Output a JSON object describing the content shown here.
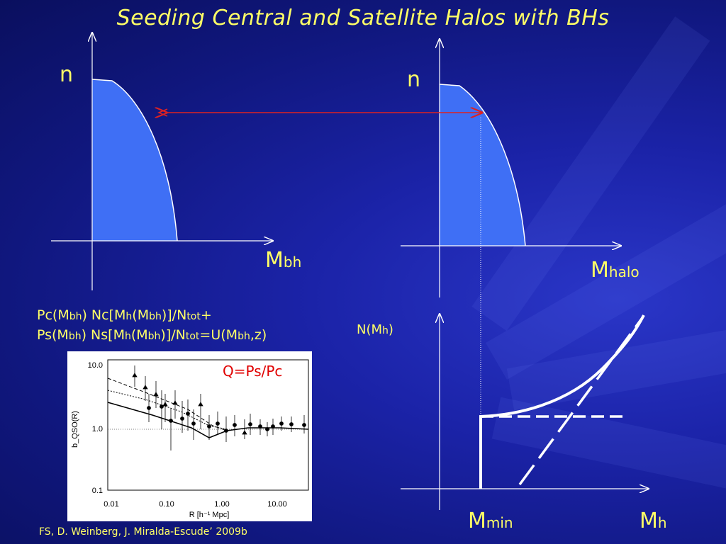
{
  "title": "Seeding Central and Satellite Halos with BHs",
  "panel_left": {
    "y_label": "n",
    "x_label_main": "M",
    "x_label_sub": "bh"
  },
  "panel_right": {
    "y_label": "n",
    "x_label_main": "M",
    "x_label_sub": "halo"
  },
  "panel_bottom": {
    "y_label_main": "N(M",
    "y_label_sub": "h",
    "y_label_end": ")",
    "x_min_main": "M",
    "x_min_sub": "min",
    "x_label_main": "M",
    "x_label_sub": "h"
  },
  "equations": {
    "line1": [
      "Pc(M",
      "bh",
      ") Nc[M",
      "h",
      "(M",
      "bh",
      ")]/N",
      "tot",
      "+"
    ],
    "line2": [
      "Ps(M",
      "bh",
      ") Ns[M",
      "h",
      "(M",
      "bh",
      ")]/N",
      "tot",
      "=U(M",
      "bh",
      ",z)"
    ]
  },
  "inset": {
    "q_label": "Q=Ps/Pc",
    "x_ticks": [
      "0.01",
      "0.10",
      "1.00",
      "10.00"
    ],
    "y_ticks": [
      "10.0",
      "1.0",
      "0.1"
    ],
    "x_label": "R [h⁻¹ Mpc]",
    "y_label": "b_QSO(R)"
  },
  "credit": "FS, D. Weinberg, J. Miralda-Escude’ 2009b",
  "colors": {
    "text": "#ffff66",
    "fill": "#3f6ff5",
    "arrow": "#dd2222",
    "q_label": "#e00000"
  }
}
